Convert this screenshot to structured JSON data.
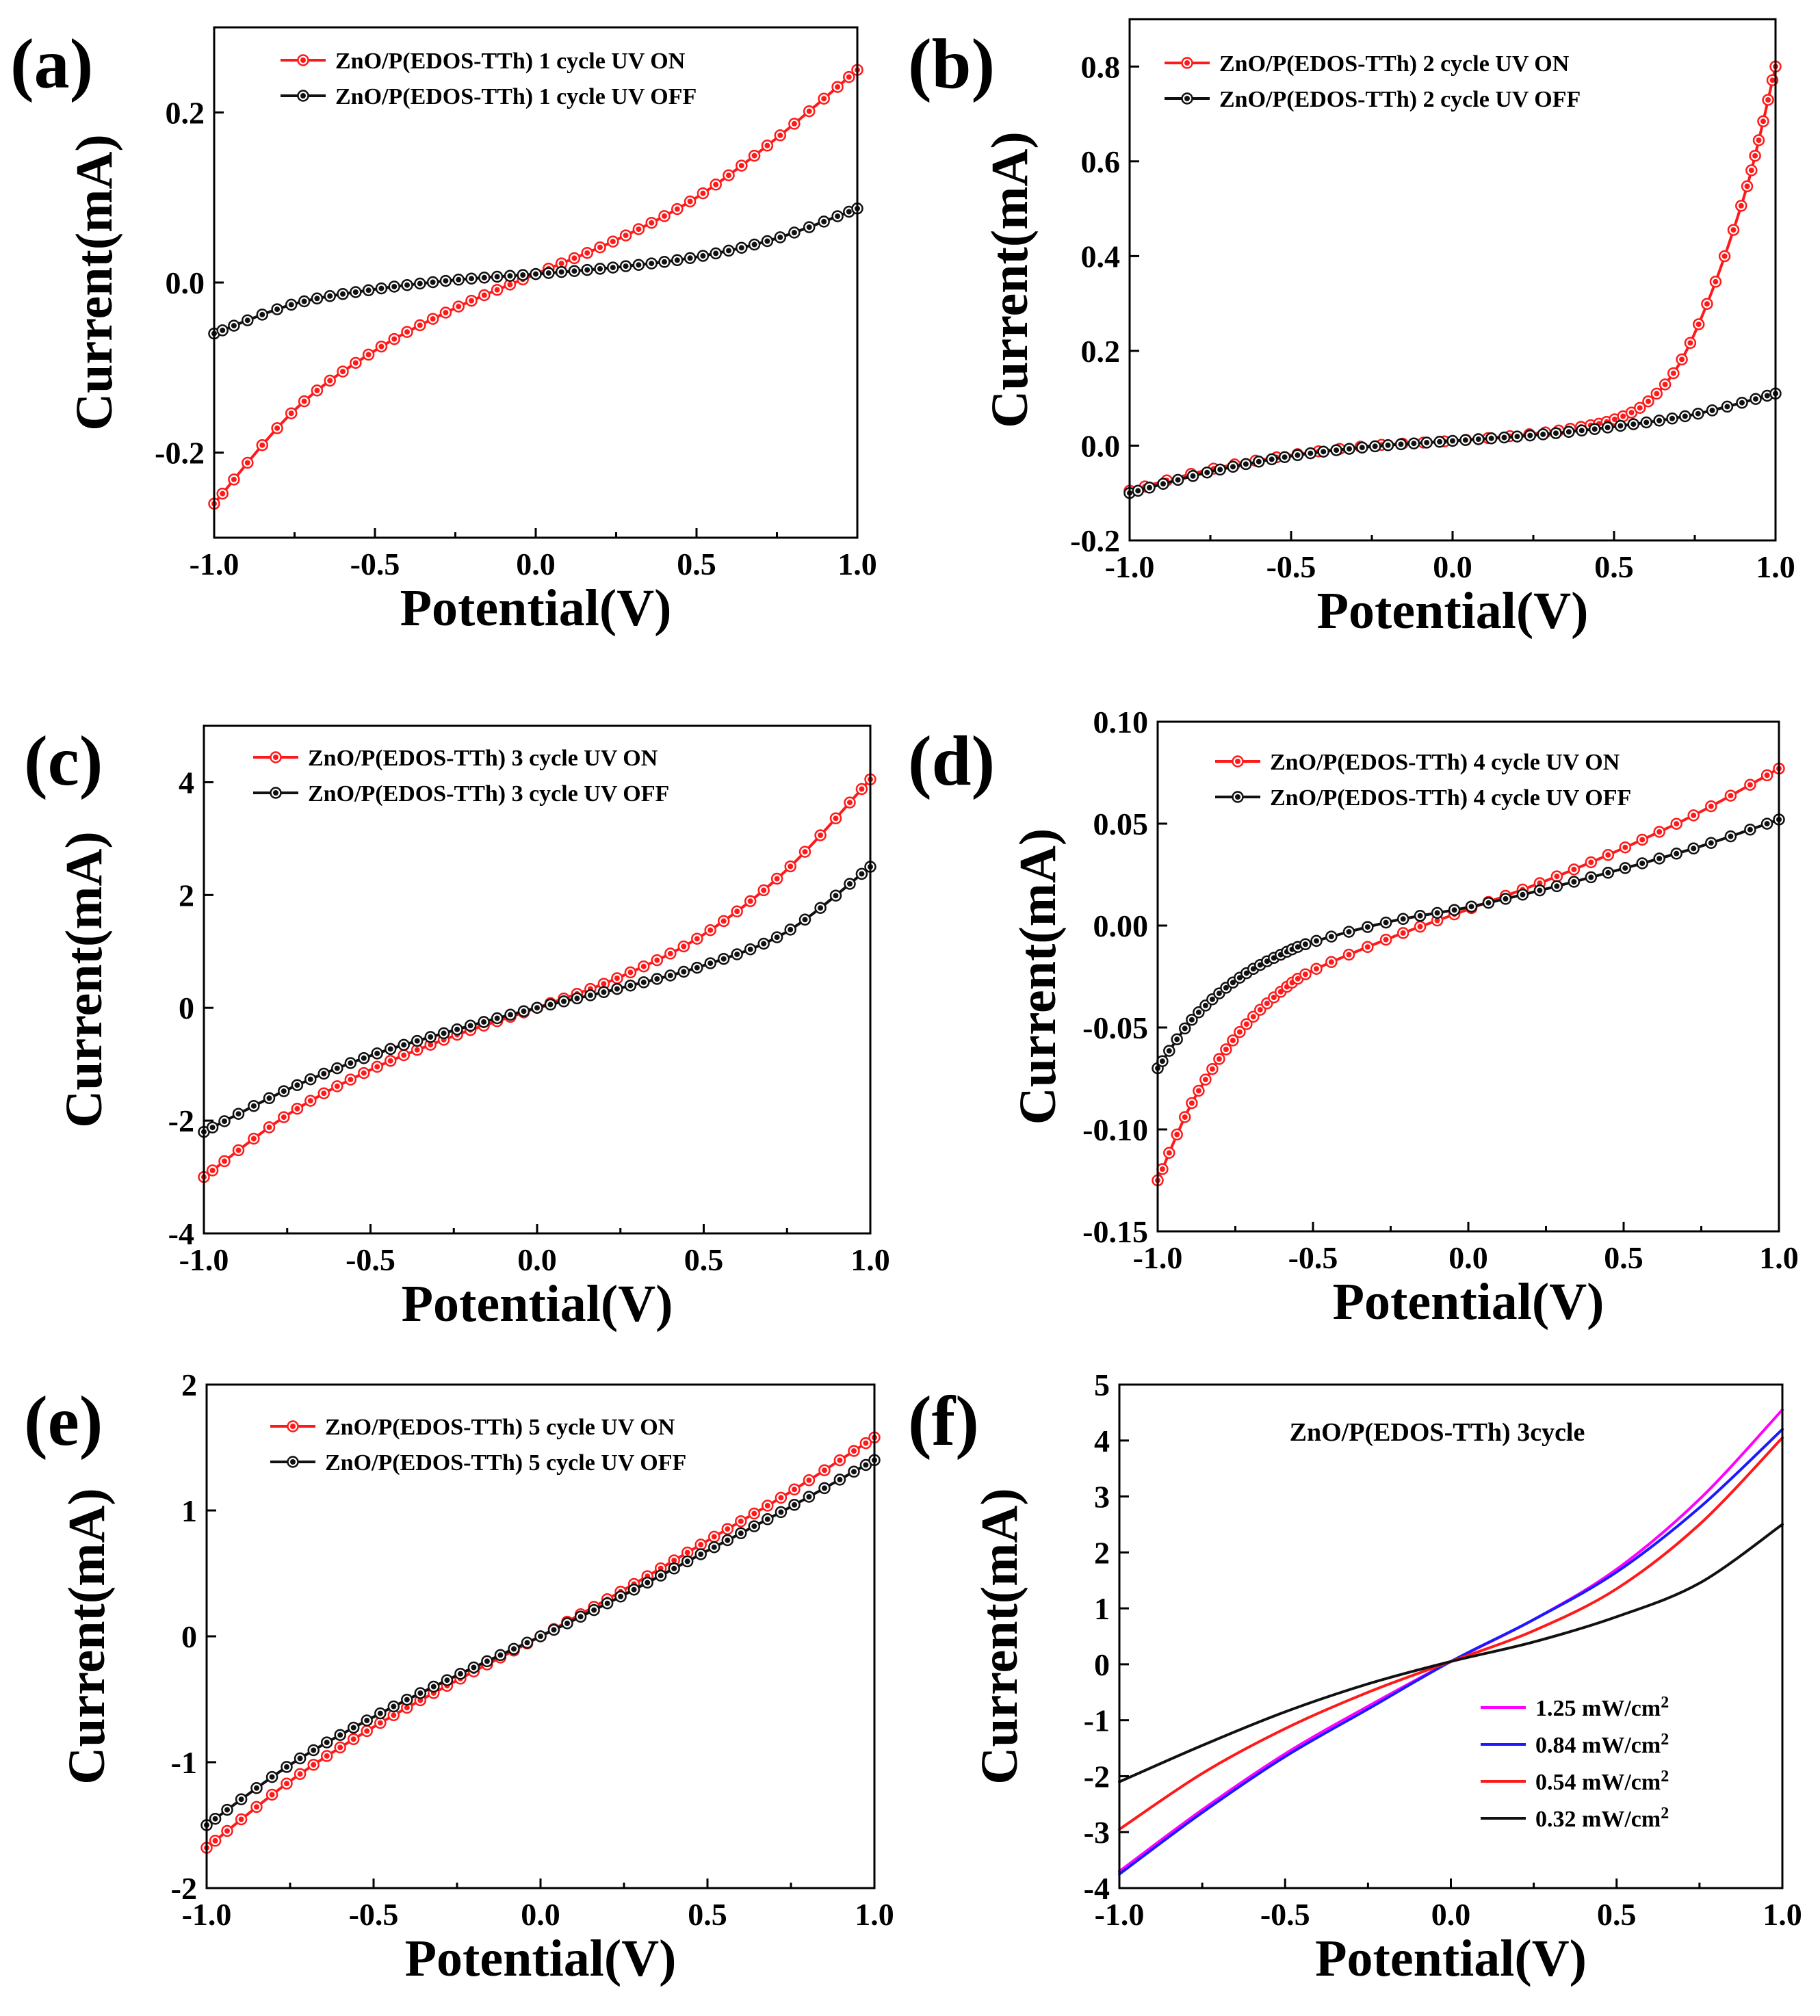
{
  "figure": {
    "colors": {
      "red": "#ff1a1a",
      "black": "#111111",
      "magenta": "#ff00ff",
      "blue": "#1a1aff"
    }
  },
  "chart_data": [
    {
      "id": "a",
      "type": "line",
      "panel_label": "(a)",
      "xlabel": "Potential(V)",
      "ylabel": "Current(mA)",
      "xlim": [
        -1.0,
        1.0
      ],
      "ylim": [
        -0.3,
        0.3
      ],
      "xticks": [
        -1.0,
        -0.5,
        0.0,
        0.5,
        1.0
      ],
      "xtick_labels": [
        "-1.0",
        "-0.5",
        "0.0",
        "0.5",
        "1.0"
      ],
      "yticks": [
        -0.2,
        0.0,
        0.2
      ],
      "ytick_labels": [
        "-0.2",
        "0.0",
        "0.2"
      ],
      "legend_position": "top-left",
      "series": [
        {
          "name": "ZnO/P(EDOS-TTh) 1 cycle UV ON",
          "color": "#ff1a1a",
          "markers": true,
          "x": [
            -1.0,
            -0.75,
            -0.5,
            -0.25,
            0.0,
            0.25,
            0.5,
            0.75,
            1.0
          ],
          "y": [
            -0.26,
            -0.15,
            -0.08,
            -0.03,
            0.01,
            0.05,
            0.1,
            0.17,
            0.25
          ]
        },
        {
          "name": "ZnO/P(EDOS-TTh) 1 cycle  UV OFF",
          "color": "#111111",
          "markers": true,
          "x": [
            -1.0,
            -0.75,
            -0.5,
            -0.25,
            0.0,
            0.25,
            0.5,
            0.75,
            1.0
          ],
          "y": [
            -0.06,
            -0.025,
            -0.008,
            0.003,
            0.01,
            0.018,
            0.03,
            0.052,
            0.087
          ]
        }
      ]
    },
    {
      "id": "b",
      "type": "line",
      "panel_label": "(b)",
      "xlabel": "Potential(V)",
      "ylabel": "Current(mA)",
      "xlim": [
        -1.0,
        1.0
      ],
      "ylim": [
        -0.2,
        0.9
      ],
      "xticks": [
        -1.0,
        -0.5,
        0.0,
        0.5,
        1.0
      ],
      "xtick_labels": [
        "-1.0",
        "-0.5",
        "0.0",
        "0.5",
        "1.0"
      ],
      "yticks": [
        -0.2,
        0.0,
        0.2,
        0.4,
        0.6,
        0.8
      ],
      "ytick_labels": [
        "-0.2",
        "0.0",
        "0.2",
        "0.4",
        "0.6",
        "0.8"
      ],
      "legend_position": "top-left",
      "series": [
        {
          "name": "ZnO/P(EDOS-TTh) 2 cycle UV ON",
          "color": "#ff1a1a",
          "markers": true,
          "x": [
            -1.0,
            -0.75,
            -0.5,
            -0.25,
            0.0,
            0.25,
            0.4,
            0.5,
            0.6,
            0.7,
            0.8,
            0.9,
            0.95,
            1.0
          ],
          "y": [
            -0.095,
            -0.05,
            -0.02,
            0.0,
            0.01,
            0.025,
            0.04,
            0.055,
            0.09,
            0.17,
            0.32,
            0.52,
            0.65,
            0.8
          ]
        },
        {
          "name": "ZnO/P(EDOS-TTh) 2 cycle  UV OFF",
          "color": "#111111",
          "markers": true,
          "x": [
            -1.0,
            -0.75,
            -0.5,
            -0.25,
            0.0,
            0.25,
            0.5,
            0.75,
            1.0
          ],
          "y": [
            -0.1,
            -0.055,
            -0.022,
            -0.002,
            0.01,
            0.022,
            0.04,
            0.066,
            0.11
          ]
        }
      ]
    },
    {
      "id": "c",
      "type": "line",
      "panel_label": "(c)",
      "xlabel": "Potential(V)",
      "ylabel": "Current(mA)",
      "xlim": [
        -1.0,
        1.0
      ],
      "ylim": [
        -4,
        5
      ],
      "xticks": [
        -1.0,
        -0.5,
        0.0,
        0.5,
        1.0
      ],
      "xtick_labels": [
        "-1.0",
        "-0.5",
        "0.0",
        "0.5",
        "1.0"
      ],
      "yticks": [
        -4,
        -2,
        0,
        2,
        4
      ],
      "ytick_labels": [
        "-4",
        "-2",
        "0",
        "2",
        "4"
      ],
      "legend_position": "top-left",
      "series": [
        {
          "name": "ZnO/P(EDOS-TTh) 3 cycle UV ON",
          "color": "#ff1a1a",
          "markers": true,
          "x": [
            -1.0,
            -0.75,
            -0.5,
            -0.25,
            0.0,
            0.25,
            0.5,
            0.75,
            1.0
          ],
          "y": [
            -3.0,
            -1.9,
            -1.1,
            -0.5,
            0.0,
            0.55,
            1.3,
            2.45,
            4.05
          ]
        },
        {
          "name": "ZnO/P(EDOS-TTh) 3 cycle  UV OFF",
          "color": "#111111",
          "markers": true,
          "x": [
            -1.0,
            -0.75,
            -0.5,
            -0.25,
            0.0,
            0.25,
            0.5,
            0.75,
            1.0
          ],
          "y": [
            -2.2,
            -1.45,
            -0.85,
            -0.4,
            0.0,
            0.35,
            0.75,
            1.35,
            2.5
          ]
        }
      ]
    },
    {
      "id": "d",
      "type": "line",
      "panel_label": "(d)",
      "xlabel": "Potential(V)",
      "ylabel": "Current(mA)",
      "xlim": [
        -1.0,
        1.0
      ],
      "ylim": [
        -0.15,
        0.1
      ],
      "xticks": [
        -1.0,
        -0.5,
        0.0,
        0.5,
        1.0
      ],
      "xtick_labels": [
        "-1.0",
        "-0.5",
        "0.0",
        "0.5",
        "1.0"
      ],
      "yticks": [
        -0.15,
        -0.1,
        -0.05,
        0.0,
        0.05,
        0.1
      ],
      "ytick_labels": [
        "-0.15",
        "-0.10",
        "-0.05",
        "0.00",
        "0.05",
        "0.10"
      ],
      "legend_position": "top-right",
      "series": [
        {
          "name": "ZnO/P(EDOS-TTh) 4 cycle UV ON",
          "color": "#ff1a1a",
          "markers": true,
          "x": [
            -1.0,
            -0.9,
            -0.8,
            -0.7,
            -0.6,
            -0.5,
            -0.25,
            0.0,
            0.25,
            0.5,
            0.75,
            1.0
          ],
          "y": [
            -0.125,
            -0.09,
            -0.065,
            -0.046,
            -0.032,
            -0.022,
            -0.006,
            0.008,
            0.022,
            0.038,
            0.056,
            0.077
          ]
        },
        {
          "name": "ZnO/P(EDOS-TTh) 4 cycle  UV OFF",
          "color": "#111111",
          "markers": true,
          "x": [
            -1.0,
            -0.9,
            -0.8,
            -0.7,
            -0.6,
            -0.5,
            -0.25,
            0.0,
            0.25,
            0.5,
            0.75,
            1.0
          ],
          "y": [
            -0.07,
            -0.048,
            -0.033,
            -0.022,
            -0.014,
            -0.008,
            0.002,
            0.009,
            0.018,
            0.028,
            0.039,
            0.052
          ]
        }
      ]
    },
    {
      "id": "e",
      "type": "line",
      "panel_label": "(e)",
      "xlabel": "Potential(V)",
      "ylabel": "Current(mA)",
      "xlim": [
        -1.0,
        1.0
      ],
      "ylim": [
        -2,
        2
      ],
      "xticks": [
        -1.0,
        -0.5,
        0.0,
        0.5,
        1.0
      ],
      "xtick_labels": [
        "-1.0",
        "-0.5",
        "0.0",
        "0.5",
        "1.0"
      ],
      "yticks": [
        -2,
        -1,
        0,
        1,
        2
      ],
      "ytick_labels": [
        "-2",
        "-1",
        "0",
        "1",
        "2"
      ],
      "legend_position": "top-left",
      "series": [
        {
          "name": "ZnO/P(EDOS-TTh) 5 cycle UV ON",
          "color": "#ff1a1a",
          "markers": true,
          "x": [
            -1.0,
            -0.75,
            -0.5,
            -0.25,
            0.0,
            0.25,
            0.5,
            0.75,
            1.0
          ],
          "y": [
            -1.68,
            -1.15,
            -0.72,
            -0.35,
            0.0,
            0.37,
            0.76,
            1.15,
            1.58
          ]
        },
        {
          "name": "ZnO/P(EDOS-TTh) 5 cycle  UV OFF",
          "color": "#111111",
          "markers": true,
          "x": [
            -1.0,
            -0.75,
            -0.5,
            -0.25,
            0.0,
            0.25,
            0.5,
            0.75,
            1.0
          ],
          "y": [
            -1.5,
            -1.02,
            -0.64,
            -0.31,
            0.0,
            0.33,
            0.68,
            1.03,
            1.4
          ]
        }
      ]
    },
    {
      "id": "f",
      "type": "line",
      "panel_label": "(f)",
      "title": "ZnO/P(EDOS-TTh) 3cycle",
      "xlabel": "Potential(V)",
      "ylabel": "Current(mA)",
      "xlim": [
        -1.0,
        1.0
      ],
      "ylim": [
        -4,
        5
      ],
      "xticks": [
        -1.0,
        -0.5,
        0.0,
        0.5,
        1.0
      ],
      "xtick_labels": [
        "-1.0",
        "-0.5",
        "0.0",
        "0.5",
        "1.0"
      ],
      "yticks": [
        -4,
        -3,
        -2,
        -1,
        0,
        1,
        2,
        3,
        4,
        5
      ],
      "ytick_labels": [
        "-4",
        "-3",
        "-2",
        "-1",
        "0",
        "1",
        "2",
        "3",
        "4",
        "5"
      ],
      "legend_position": "bottom-right",
      "series": [
        {
          "name": "1.25 mW/cm",
          "unit_superscript": "2",
          "color": "#ff00ff",
          "markers": false,
          "x": [
            -1.0,
            -0.75,
            -0.5,
            -0.25,
            0.0,
            0.25,
            0.5,
            0.75,
            1.0
          ],
          "y": [
            -3.7,
            -2.6,
            -1.6,
            -0.75,
            0.05,
            0.8,
            1.7,
            2.95,
            4.55
          ]
        },
        {
          "name": "0.84 mW/cm",
          "unit_superscript": "2",
          "color": "#1a1aff",
          "markers": false,
          "x": [
            -1.0,
            -0.75,
            -0.5,
            -0.25,
            0.0,
            0.25,
            0.5,
            0.75,
            1.0
          ],
          "y": [
            -3.75,
            -2.65,
            -1.65,
            -0.8,
            0.05,
            0.8,
            1.65,
            2.8,
            4.2
          ]
        },
        {
          "name": "0.54 mW/cm",
          "unit_superscript": "2",
          "color": "#ff1a1a",
          "markers": false,
          "x": [
            -1.0,
            -0.75,
            -0.5,
            -0.25,
            0.0,
            0.25,
            0.5,
            0.75,
            1.0
          ],
          "y": [
            -2.95,
            -1.95,
            -1.15,
            -0.5,
            0.05,
            0.6,
            1.35,
            2.5,
            4.05
          ]
        },
        {
          "name": "0.32 mW/cm",
          "unit_superscript": "2",
          "color": "#111111",
          "markers": false,
          "x": [
            -1.0,
            -0.75,
            -0.5,
            -0.25,
            0.0,
            0.25,
            0.5,
            0.75,
            1.0
          ],
          "y": [
            -2.1,
            -1.45,
            -0.85,
            -0.35,
            0.05,
            0.4,
            0.85,
            1.45,
            2.5
          ]
        }
      ]
    }
  ]
}
